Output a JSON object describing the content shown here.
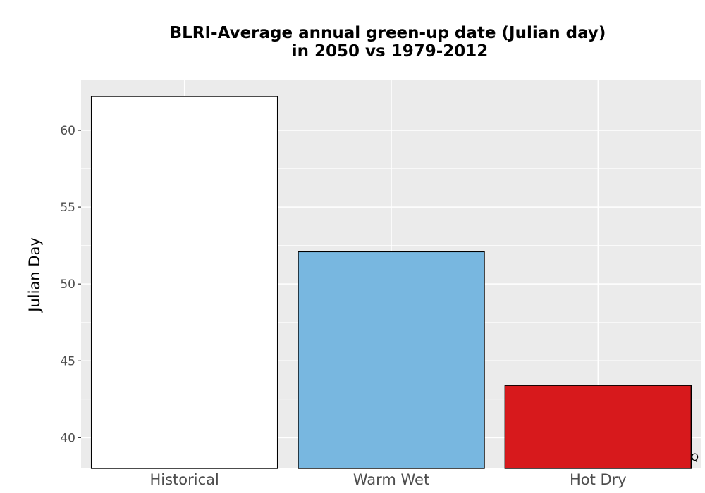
{
  "chart_data": {
    "type": "bar",
    "title_lines": [
      "BLRI-Average annual green-up date (Julian day)",
      "in 2050 vs 1979-2012"
    ],
    "xlabel": "",
    "ylabel": "Julian Day",
    "categories": [
      "Historical",
      "Warm Wet",
      "Hot Dry"
    ],
    "values": [
      62.2,
      52.1,
      43.4
    ],
    "colors": [
      "#ffffff",
      "#78b7e0",
      "#d7191c"
    ],
    "bar_outline": "#000000",
    "panel_background": "#ebebeb",
    "grid": true,
    "ylim": [
      38,
      63.3
    ],
    "yticks": [
      40,
      45,
      50,
      55,
      60
    ],
    "corner_mark": "Q"
  }
}
